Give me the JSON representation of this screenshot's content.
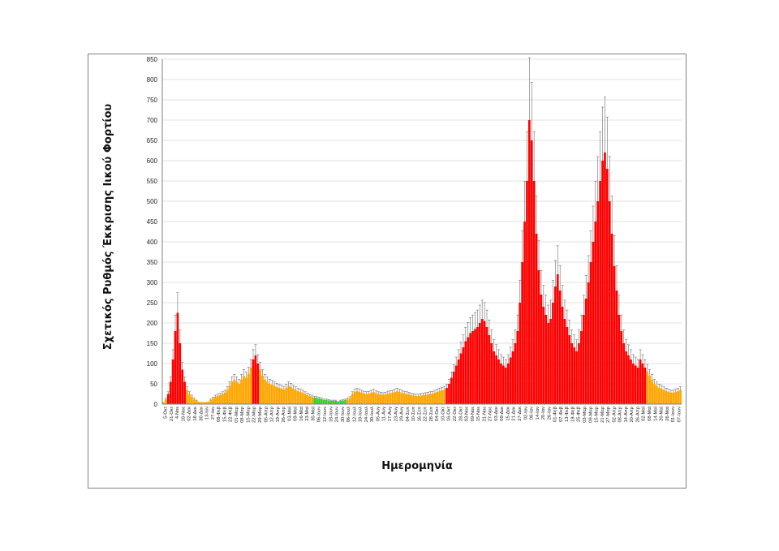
{
  "chart_data": {
    "type": "bar",
    "title": "",
    "ylabel": "Σχετικός Ρυθμός Έκκρισης Ιικού Φορτίου",
    "xlabel": "Ημερομηνία",
    "ylim": [
      0,
      850
    ],
    "yticks": [
      0,
      50,
      100,
      150,
      200,
      250,
      300,
      350,
      400,
      450,
      500,
      550,
      600,
      650,
      700,
      750,
      800,
      850
    ],
    "grid": true,
    "error_bars": true,
    "colors": {
      "red": "#ff0000",
      "orange": "#ffa500",
      "green": "#33cc33",
      "error": "#6e6e6e",
      "grid": "#d9d9d9",
      "axis": "#7f7f7f"
    },
    "x_tick_labels": [
      "5-Οκτ",
      "21-Οκτ",
      "4-Νοε",
      "18-Νοε",
      "02-Δεκ",
      "16-Δεκ",
      "30-Δεκ",
      "13-Ιαν",
      "27-Ιαν",
      "08-Φεβ",
      "15-Φεβ",
      "22-Φεβ",
      "01-Μαρ",
      "08-Μαρ",
      "15-Μαρ",
      "22-Μαρ",
      "29-Μαρ",
      "05-Απρ",
      "12-Απρ",
      "19-Απρ",
      "26-Απρ",
      "03-Μαϊ",
      "09-Μαϊ",
      "16-Μαϊ",
      "23-Μαϊ",
      "30-Μαϊ",
      "06-Ιουν",
      "12-Ιουν",
      "18-Ιουν",
      "24-Ιουν",
      "30-Ιουν",
      "06-Ιουλ",
      "12-Ιουλ",
      "18-Ιουλ",
      "24-Ιουλ",
      "30-Ιουλ",
      "05-Αυγ",
      "11-Αυγ",
      "17-Αυγ",
      "23-Αυγ",
      "29-Αυγ",
      "04-Σεπ",
      "10-Σεπ",
      "16-Σεπ",
      "22-Σεπ",
      "28-Σεπ",
      "04-Οκτ",
      "10-Οκτ",
      "16-Οκτ",
      "22-Οκτ",
      "28-Οκτ",
      "03-Νοε",
      "09-Νοε",
      "15-Νοε",
      "21-Νοε",
      "27-Νοε",
      "03-Δεκ",
      "09-Δεκ",
      "15-Δεκ",
      "21-Δεκ",
      "27-Δεκ",
      "02-Ιαν",
      "08-Ιαν",
      "14-Ιαν",
      "20-Ιαν",
      "26-Ιαν",
      "01-Φεβ",
      "07-Φεβ",
      "13-Φεβ",
      "19-Φεβ",
      "25-Φεβ",
      "03-Μαρ",
      "09-Μαρ",
      "15-Μαρ",
      "21-Μαρ",
      "27-Μαρ",
      "02-Απρ",
      "08-Απρ",
      "14-Απρ",
      "20-Απρ",
      "26-Απρ",
      "02-Μαϊ",
      "08-Μαϊ",
      "14-Μαϊ",
      "20-Μαϊ",
      "26-Μαϊ",
      "01-Ιουν",
      "07-Ιουν"
    ],
    "series": [
      {
        "values": [
          5,
          12,
          25,
          55,
          110,
          180,
          225,
          150,
          85,
          55,
          35,
          25,
          18,
          12,
          8,
          6,
          5,
          5,
          5,
          6,
          10,
          14,
          18,
          20,
          22,
          25,
          28,
          35,
          45,
          55,
          60,
          55,
          50,
          60,
          70,
          65,
          75,
          90,
          110,
          120,
          100,
          85,
          70,
          60,
          55,
          50,
          48,
          45,
          42,
          40,
          38,
          36,
          40,
          45,
          42,
          38,
          35,
          32,
          30,
          28,
          25,
          22,
          20,
          18,
          16,
          15,
          14,
          12,
          10,
          10,
          9,
          8,
          8,
          8,
          7,
          8,
          9,
          10,
          12,
          15,
          25,
          30,
          32,
          30,
          28,
          26,
          25,
          26,
          28,
          30,
          27,
          25,
          24,
          23,
          24,
          26,
          27,
          28,
          30,
          32,
          30,
          28,
          26,
          25,
          24,
          22,
          21,
          20,
          20,
          21,
          22,
          23,
          24,
          25,
          26,
          28,
          30,
          32,
          34,
          36,
          40,
          50,
          65,
          80,
          95,
          110,
          125,
          140,
          155,
          165,
          175,
          180,
          185,
          190,
          200,
          210,
          205,
          190,
          170,
          150,
          130,
          120,
          110,
          100,
          95,
          90,
          100,
          115,
          130,
          150,
          180,
          250,
          350,
          450,
          550,
          700,
          650,
          550,
          420,
          330,
          270,
          240,
          220,
          200,
          210,
          250,
          290,
          320,
          280,
          240,
          210,
          190,
          170,
          150,
          140,
          130,
          150,
          180,
          220,
          260,
          300,
          350,
          400,
          450,
          500,
          550,
          600,
          620,
          580,
          500,
          420,
          340,
          280,
          220,
          180,
          150,
          130,
          120,
          110,
          100,
          95,
          90,
          110,
          100,
          90,
          80,
          70,
          60,
          50,
          45,
          40,
          38,
          35,
          32,
          30,
          28,
          28,
          30,
          32,
          35
        ],
        "colors": [
          "orange",
          "orange",
          "red",
          "red",
          "red",
          "red",
          "red",
          "red",
          "red",
          "red",
          "orange",
          "orange",
          "orange",
          "orange",
          "orange",
          "orange",
          "orange",
          "orange",
          "orange",
          "orange",
          "orange",
          "orange",
          "orange",
          "orange",
          "orange",
          "orange",
          "orange",
          "orange",
          "orange",
          "orange",
          "orange",
          "orange",
          "orange",
          "orange",
          "orange",
          "orange",
          "orange",
          "orange",
          "red",
          "red",
          "red",
          "orange",
          "orange",
          "orange",
          "orange",
          "orange",
          "orange",
          "orange",
          "orange",
          "orange",
          "orange",
          "orange",
          "orange",
          "orange",
          "orange",
          "orange",
          "orange",
          "orange",
          "orange",
          "orange",
          "orange",
          "orange",
          "orange",
          "orange",
          "green",
          "green",
          "green",
          "green",
          "green",
          "green",
          "green",
          "green",
          "green",
          "green",
          "green",
          "green",
          "green",
          "green",
          "orange",
          "orange",
          "orange",
          "orange",
          "orange",
          "orange",
          "orange",
          "orange",
          "orange",
          "orange",
          "orange",
          "orange",
          "orange",
          "orange",
          "orange",
          "orange",
          "orange",
          "orange",
          "orange",
          "orange",
          "orange",
          "orange",
          "orange",
          "orange",
          "orange",
          "orange",
          "orange",
          "orange",
          "orange",
          "orange",
          "orange",
          "orange",
          "orange",
          "orange",
          "orange",
          "orange",
          "orange",
          "orange",
          "orange",
          "orange",
          "orange",
          "orange",
          "red",
          "red",
          "red",
          "red",
          "red",
          "red",
          "red",
          "red",
          "red",
          "red",
          "red",
          "red",
          "red",
          "red",
          "red",
          "red",
          "red",
          "red",
          "red",
          "red",
          "red",
          "red",
          "red",
          "red",
          "red",
          "red",
          "red",
          "red",
          "red",
          "red",
          "red",
          "red",
          "red",
          "red",
          "red",
          "red",
          "red",
          "red",
          "red",
          "red",
          "red",
          "red",
          "red",
          "red",
          "red",
          "red",
          "red",
          "red",
          "red",
          "red",
          "red",
          "red",
          "red",
          "red",
          "red",
          "red",
          "red",
          "red",
          "red",
          "red",
          "red",
          "red",
          "red",
          "red",
          "red",
          "red",
          "red",
          "red",
          "red",
          "red",
          "red",
          "red",
          "red",
          "red",
          "red",
          "red",
          "red",
          "red",
          "red",
          "red",
          "red",
          "red",
          "red",
          "red",
          "red",
          "orange",
          "orange",
          "orange",
          "orange",
          "orange",
          "orange",
          "orange",
          "orange",
          "orange",
          "orange",
          "orange",
          "orange",
          "orange",
          "orange",
          "orange"
        ]
      }
    ]
  }
}
